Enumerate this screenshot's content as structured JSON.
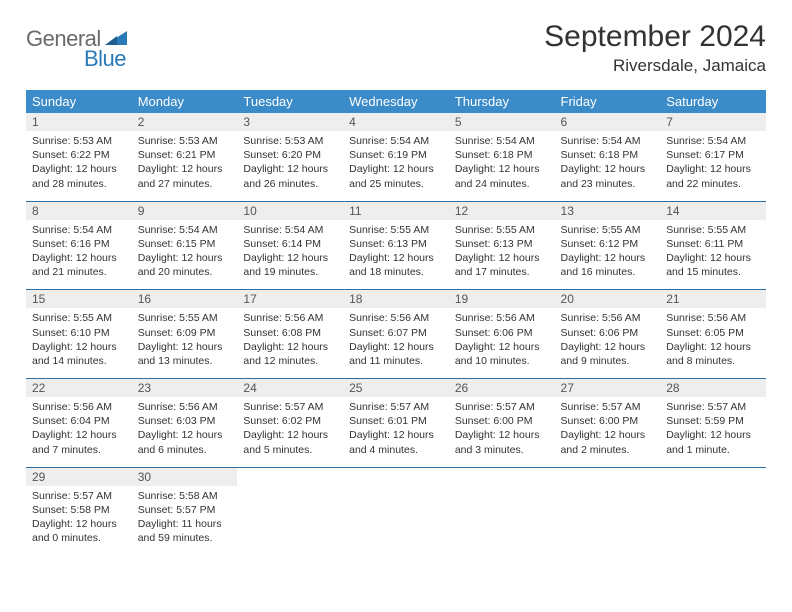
{
  "brand": {
    "word1": "General",
    "word2": "Blue",
    "logo_color": "#2a7ab8"
  },
  "title": "September 2024",
  "location": "Riversdale, Jamaica",
  "colors": {
    "header_bg": "#3b8bc8",
    "header_text": "#ffffff",
    "daynum_bg": "#eeeeee",
    "week_sep": "#2a6ea3",
    "body_text": "#333333"
  },
  "dow": [
    "Sunday",
    "Monday",
    "Tuesday",
    "Wednesday",
    "Thursday",
    "Friday",
    "Saturday"
  ],
  "weeks": [
    [
      {
        "n": "1",
        "sr": "Sunrise: 5:53 AM",
        "ss": "Sunset: 6:22 PM",
        "d1": "Daylight: 12 hours",
        "d2": "and 28 minutes."
      },
      {
        "n": "2",
        "sr": "Sunrise: 5:53 AM",
        "ss": "Sunset: 6:21 PM",
        "d1": "Daylight: 12 hours",
        "d2": "and 27 minutes."
      },
      {
        "n": "3",
        "sr": "Sunrise: 5:53 AM",
        "ss": "Sunset: 6:20 PM",
        "d1": "Daylight: 12 hours",
        "d2": "and 26 minutes."
      },
      {
        "n": "4",
        "sr": "Sunrise: 5:54 AM",
        "ss": "Sunset: 6:19 PM",
        "d1": "Daylight: 12 hours",
        "d2": "and 25 minutes."
      },
      {
        "n": "5",
        "sr": "Sunrise: 5:54 AM",
        "ss": "Sunset: 6:18 PM",
        "d1": "Daylight: 12 hours",
        "d2": "and 24 minutes."
      },
      {
        "n": "6",
        "sr": "Sunrise: 5:54 AM",
        "ss": "Sunset: 6:18 PM",
        "d1": "Daylight: 12 hours",
        "d2": "and 23 minutes."
      },
      {
        "n": "7",
        "sr": "Sunrise: 5:54 AM",
        "ss": "Sunset: 6:17 PM",
        "d1": "Daylight: 12 hours",
        "d2": "and 22 minutes."
      }
    ],
    [
      {
        "n": "8",
        "sr": "Sunrise: 5:54 AM",
        "ss": "Sunset: 6:16 PM",
        "d1": "Daylight: 12 hours",
        "d2": "and 21 minutes."
      },
      {
        "n": "9",
        "sr": "Sunrise: 5:54 AM",
        "ss": "Sunset: 6:15 PM",
        "d1": "Daylight: 12 hours",
        "d2": "and 20 minutes."
      },
      {
        "n": "10",
        "sr": "Sunrise: 5:54 AM",
        "ss": "Sunset: 6:14 PM",
        "d1": "Daylight: 12 hours",
        "d2": "and 19 minutes."
      },
      {
        "n": "11",
        "sr": "Sunrise: 5:55 AM",
        "ss": "Sunset: 6:13 PM",
        "d1": "Daylight: 12 hours",
        "d2": "and 18 minutes."
      },
      {
        "n": "12",
        "sr": "Sunrise: 5:55 AM",
        "ss": "Sunset: 6:13 PM",
        "d1": "Daylight: 12 hours",
        "d2": "and 17 minutes."
      },
      {
        "n": "13",
        "sr": "Sunrise: 5:55 AM",
        "ss": "Sunset: 6:12 PM",
        "d1": "Daylight: 12 hours",
        "d2": "and 16 minutes."
      },
      {
        "n": "14",
        "sr": "Sunrise: 5:55 AM",
        "ss": "Sunset: 6:11 PM",
        "d1": "Daylight: 12 hours",
        "d2": "and 15 minutes."
      }
    ],
    [
      {
        "n": "15",
        "sr": "Sunrise: 5:55 AM",
        "ss": "Sunset: 6:10 PM",
        "d1": "Daylight: 12 hours",
        "d2": "and 14 minutes."
      },
      {
        "n": "16",
        "sr": "Sunrise: 5:55 AM",
        "ss": "Sunset: 6:09 PM",
        "d1": "Daylight: 12 hours",
        "d2": "and 13 minutes."
      },
      {
        "n": "17",
        "sr": "Sunrise: 5:56 AM",
        "ss": "Sunset: 6:08 PM",
        "d1": "Daylight: 12 hours",
        "d2": "and 12 minutes."
      },
      {
        "n": "18",
        "sr": "Sunrise: 5:56 AM",
        "ss": "Sunset: 6:07 PM",
        "d1": "Daylight: 12 hours",
        "d2": "and 11 minutes."
      },
      {
        "n": "19",
        "sr": "Sunrise: 5:56 AM",
        "ss": "Sunset: 6:06 PM",
        "d1": "Daylight: 12 hours",
        "d2": "and 10 minutes."
      },
      {
        "n": "20",
        "sr": "Sunrise: 5:56 AM",
        "ss": "Sunset: 6:06 PM",
        "d1": "Daylight: 12 hours",
        "d2": "and 9 minutes."
      },
      {
        "n": "21",
        "sr": "Sunrise: 5:56 AM",
        "ss": "Sunset: 6:05 PM",
        "d1": "Daylight: 12 hours",
        "d2": "and 8 minutes."
      }
    ],
    [
      {
        "n": "22",
        "sr": "Sunrise: 5:56 AM",
        "ss": "Sunset: 6:04 PM",
        "d1": "Daylight: 12 hours",
        "d2": "and 7 minutes."
      },
      {
        "n": "23",
        "sr": "Sunrise: 5:56 AM",
        "ss": "Sunset: 6:03 PM",
        "d1": "Daylight: 12 hours",
        "d2": "and 6 minutes."
      },
      {
        "n": "24",
        "sr": "Sunrise: 5:57 AM",
        "ss": "Sunset: 6:02 PM",
        "d1": "Daylight: 12 hours",
        "d2": "and 5 minutes."
      },
      {
        "n": "25",
        "sr": "Sunrise: 5:57 AM",
        "ss": "Sunset: 6:01 PM",
        "d1": "Daylight: 12 hours",
        "d2": "and 4 minutes."
      },
      {
        "n": "26",
        "sr": "Sunrise: 5:57 AM",
        "ss": "Sunset: 6:00 PM",
        "d1": "Daylight: 12 hours",
        "d2": "and 3 minutes."
      },
      {
        "n": "27",
        "sr": "Sunrise: 5:57 AM",
        "ss": "Sunset: 6:00 PM",
        "d1": "Daylight: 12 hours",
        "d2": "and 2 minutes."
      },
      {
        "n": "28",
        "sr": "Sunrise: 5:57 AM",
        "ss": "Sunset: 5:59 PM",
        "d1": "Daylight: 12 hours",
        "d2": "and 1 minute."
      }
    ],
    [
      {
        "n": "29",
        "sr": "Sunrise: 5:57 AM",
        "ss": "Sunset: 5:58 PM",
        "d1": "Daylight: 12 hours",
        "d2": "and 0 minutes."
      },
      {
        "n": "30",
        "sr": "Sunrise: 5:58 AM",
        "ss": "Sunset: 5:57 PM",
        "d1": "Daylight: 11 hours",
        "d2": "and 59 minutes."
      },
      null,
      null,
      null,
      null,
      null
    ]
  ]
}
